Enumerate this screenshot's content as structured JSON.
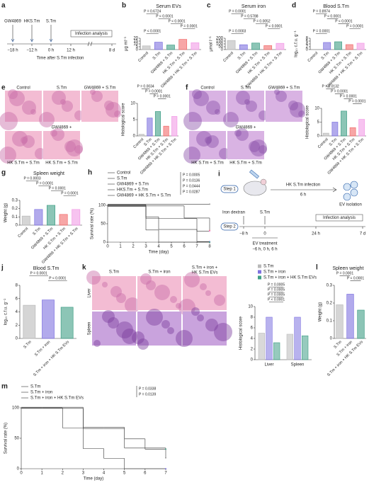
{
  "chart_data": [
    {
      "type": "bar",
      "panel": "b",
      "title": "Serum EVs",
      "ylabel": "μg ml⁻¹",
      "categories": [
        "Control",
        "S.Tm",
        "GW4869 + S.Tm",
        "HK S.Tm + S.Tm",
        "GW4869 + HK S.Tm + S.Tm"
      ],
      "values": [
        6.5,
        13,
        8,
        18,
        12
      ],
      "colors": [
        "#b9b9b9",
        "#7e72e0",
        "#3f9f86",
        "#f26b6b",
        "#f29be6"
      ],
      "ylim": [
        0,
        20
      ],
      "yticks": [
        0,
        5,
        10,
        15,
        20
      ],
      "annotations": [
        "P = 0.6724",
        "P < 0.0001",
        "P < 0.0001",
        "P = 0.0001",
        "P < 0.0001"
      ]
    },
    {
      "type": "bar",
      "panel": "c",
      "title": "Serum iron",
      "ylabel": "μmol l⁻¹",
      "categories": [
        "Control",
        "S.Tm",
        "GW4869 + S.Tm",
        "HK S.Tm + S.Tm",
        "GW4869 + HK S.Tm + S.Tm"
      ],
      "values": [
        160,
        85,
        115,
        70,
        110
      ],
      "colors": [
        "#b9b9b9",
        "#7e72e0",
        "#3f9f86",
        "#f26b6b",
        "#f29be6"
      ],
      "ylim": [
        0,
        200
      ],
      "yticks": [
        0,
        50,
        100,
        150,
        200
      ],
      "annotations": [
        "P = 0.0001",
        "P = 0.5788",
        "P = 0.0052",
        "P < 0.0001",
        "P = 0.0003"
      ]
    },
    {
      "type": "bar",
      "panel": "d",
      "title": "Blood S.Tm",
      "ylabel": "log₁₀ c.f.u. g⁻¹",
      "categories": [
        "Control",
        "S.Tm",
        "GW4869 + S.Tm",
        "HK S.Tm + S.Tm",
        "GW4869 + HK S.Tm + S.Tm"
      ],
      "values": [
        0,
        5,
        5.5,
        3.5,
        4.5
      ],
      "colors": [
        "#b9b9b9",
        "#7e72e0",
        "#3f9f86",
        "#f26b6b",
        "#f29be6"
      ],
      "ylim": [
        0,
        8
      ],
      "yticks": [
        0,
        2,
        4,
        6,
        8
      ],
      "annotations": [
        "P = 0.8974",
        "P < 0.0001",
        "P < 0.0001",
        "P = 0.0001",
        "P = 0.0001"
      ]
    },
    {
      "type": "bar",
      "ylabel": "Histological score",
      "categories": [
        "Control",
        "S.Tm",
        "GW4869 + S.Tm",
        "HK S.Tm + S.Tm",
        "GW4869 + HK S.Tm + S.Tm"
      ],
      "values": [
        0.5,
        5.5,
        7.5,
        3,
        6
      ],
      "colors": [
        "#b9b9b9",
        "#7e72e0",
        "#3f9f86",
        "#f26b6b",
        "#f29be6"
      ],
      "ylim": [
        0,
        10
      ],
      "yticks": [
        0,
        5,
        10
      ],
      "annotations": [
        "P = 0.0034",
        "P = 0.0001",
        "P = 0.0001"
      ]
    },
    {
      "type": "bar",
      "ylabel": "Histological score",
      "categories": [
        "Control",
        "S.Tm",
        "GW4869 + S.Tm",
        "HK S.Tm + S.Tm",
        "GW4869 + HK S.Tm + S.Tm"
      ],
      "values": [
        1,
        5,
        9,
        3,
        6
      ],
      "colors": [
        "#b9b9b9",
        "#7e72e0",
        "#3f9f86",
        "#f26b6b",
        "#f29be6"
      ],
      "ylim": [
        0,
        10
      ],
      "yticks": [
        0,
        5,
        10
      ],
      "annotations": [
        "P = 0.0132",
        "P = 0.0001",
        "P = 0.0001",
        "P = 0.0001"
      ]
    },
    {
      "type": "bar",
      "panel": "g",
      "title": "Spleen weight",
      "ylabel": "Weight (g)",
      "categories": [
        "Control",
        "S.Tm",
        "GW4869 + S.Tm",
        "HK S.Tm + S.Tm",
        "GW4869 + HK S.Tm + S.Tm"
      ],
      "values": [
        0.11,
        0.19,
        0.24,
        0.13,
        0.19
      ],
      "colors": [
        "#b9b9b9",
        "#7e72e0",
        "#3f9f86",
        "#f26b6b",
        "#f29be6"
      ],
      "ylim": [
        0,
        0.3
      ],
      "yticks": [
        0,
        0.1,
        0.2,
        0.3
      ],
      "annotations": [
        "P = 0.0003",
        "P = 0.0001",
        "P = 0.0001",
        "P = 0.0001"
      ]
    },
    {
      "type": "line",
      "step": true,
      "panel": "h",
      "xlabel": "Time (day)",
      "ylabel": "Survival rate (%)",
      "x": [
        0,
        1,
        2,
        3,
        4,
        5,
        6,
        7,
        8
      ],
      "xlim": [
        0,
        8
      ],
      "xticks": [
        0,
        1,
        2,
        3,
        4,
        5,
        6,
        7,
        8
      ],
      "ylim": [
        0,
        100
      ],
      "yticks": [
        0,
        50,
        100
      ],
      "series": [
        {
          "name": "Control",
          "color": "#9a9a9a",
          "values": [
            100,
            100,
            100,
            100,
            100,
            100,
            100,
            100,
            100
          ]
        },
        {
          "name": "S.Tm",
          "color": "#7e72e0",
          "values": [
            100,
            100,
            100,
            67,
            33,
            33,
            33,
            0,
            0
          ]
        },
        {
          "name": "GW4869 + S.Tm",
          "color": "#3f9f86",
          "values": [
            100,
            100,
            100,
            33,
            0,
            0,
            0,
            0,
            0
          ]
        },
        {
          "name": "HKS.Tm + S.Tm",
          "color": "#f26b6b",
          "values": [
            100,
            100,
            100,
            100,
            100,
            100,
            67,
            67,
            33
          ]
        },
        {
          "name": "GW4869 + HK S.Tm + S.Tm",
          "color": "#f29be6",
          "values": [
            100,
            100,
            100,
            67,
            67,
            67,
            67,
            33,
            33
          ]
        }
      ],
      "annotations": [
        "P = 0.0005",
        "P = 0.0136",
        "P = 0.0444",
        "P = 0.0287"
      ]
    },
    {
      "type": "bar",
      "panel": "j",
      "title": "Blood S.Tm",
      "ylabel": "log₁₀ c.f.u. g⁻¹",
      "categories": [
        "S.Tm",
        "S.Tm + iron",
        "S.Tm + iron + HK S.Tm EVs"
      ],
      "values": [
        5,
        5.8,
        4.7
      ],
      "colors": [
        "#b9b9b9",
        "#7e72e0",
        "#3f9f86"
      ],
      "ylim": [
        0,
        8
      ],
      "yticks": [
        0,
        2,
        4,
        6,
        8
      ],
      "annotations": [
        "P = 0.0001",
        "P < 0.0001"
      ]
    },
    {
      "type": "bar",
      "ylabel": "Histological score",
      "categories": [
        "Liver",
        "Spleen"
      ],
      "series": [
        {
          "name": "S.Tm",
          "color": "#b9b9b9",
          "values": [
            5,
            4.8
          ]
        },
        {
          "name": "S.Tm + iron",
          "color": "#7e72e0",
          "values": [
            8,
            8
          ]
        },
        {
          "name": "S.Tm + iron + HK S.Tm EVs",
          "color": "#3f9f86",
          "values": [
            3.2,
            4.5
          ]
        }
      ],
      "ylim": [
        0,
        10
      ],
      "yticks": [
        0,
        2,
        4,
        6,
        8,
        10
      ],
      "annotations": [
        "P = 0.0005",
        "P = 0.0005",
        "P = 0.0005",
        "P < 0.0001"
      ]
    },
    {
      "type": "bar",
      "panel": "l",
      "title": "Spleen weight",
      "ylabel": "Weight (g)",
      "categories": [
        "S.Tm",
        "S.Tm + iron",
        "S.Tm + iron + HK S.Tm EVs"
      ],
      "values": [
        0.19,
        0.25,
        0.16
      ],
      "colors": [
        "#b9b9b9",
        "#7e72e0",
        "#3f9f86"
      ],
      "ylim": [
        0,
        0.3
      ],
      "yticks": [
        0,
        0.1,
        0.2,
        0.3
      ],
      "annotations": [
        "P = 0.0001",
        "P < 0.0001"
      ]
    },
    {
      "type": "line",
      "step": true,
      "panel": "m",
      "xlabel": "Time (day)",
      "ylabel": "Survival rate (%)",
      "x": [
        0,
        1,
        2,
        3,
        4,
        5,
        6,
        7
      ],
      "xlim": [
        0,
        7
      ],
      "xticks": [
        0,
        1,
        2,
        3,
        4,
        5,
        6,
        7
      ],
      "ylim": [
        0,
        100
      ],
      "yticks": [
        0,
        50,
        100
      ],
      "series": [
        {
          "name": "S.Tm",
          "color": "#9a9a9a",
          "values": [
            100,
            100,
            100,
            67,
            67,
            33,
            33,
            17
          ]
        },
        {
          "name": "S.Tm + iron",
          "color": "#7e72e0",
          "values": [
            100,
            100,
            67,
            33,
            17,
            0,
            0,
            0
          ]
        },
        {
          "name": "S.Tm + iron + HK S.Tm EVs",
          "color": "#3f9f86",
          "values": [
            100,
            100,
            100,
            67,
            67,
            50,
            33,
            33
          ]
        }
      ],
      "annotations": [
        "P = 0.0338",
        "P = 0.0139"
      ]
    }
  ],
  "timeline": {
    "panel": "a",
    "treatments": [
      "GW4869",
      "HKS.Tm",
      "S.Tm"
    ],
    "ticks": [
      "−18 h",
      "−12 h",
      "0 h",
      "12 h",
      "8 d"
    ],
    "analysis": "Infection analysis",
    "xlabel": "Time after S.Tm infection"
  },
  "histology_e": {
    "panel": "e",
    "labels": [
      "Control",
      "S.Tm",
      "GW4869 + S.Tm",
      "GW4869 +",
      "HK S.Tm + S.Tm",
      "HK S.Tm + S.Tm"
    ]
  },
  "histology_f": {
    "panel": "f",
    "labels": [
      "Control",
      "S.Tm",
      "GW4869 + S.Tm",
      "GW4869 +",
      "HK S.Tm + S.Tm",
      "HK S.Tm + S.Tm"
    ]
  },
  "histology_k": {
    "panel": "k",
    "columns": [
      "S.Tm",
      "S.Tm + iron",
      "S.Tm + iron +",
      "HK S.Tm EVs"
    ],
    "rows": [
      "Liver",
      "Spleen"
    ]
  },
  "schematic": {
    "panel": "i",
    "step1": "Step 1",
    "infection": "HK S.Tm infection",
    "duration": "6 h",
    "isolation": "EV isolation",
    "iron": "Iron dextran",
    "stm": "S.Tm",
    "step2": "Step 2",
    "analysis": "Infection analysis",
    "ticks": [
      "−8 h",
      "0",
      "24 h",
      "7 d"
    ],
    "treatment": "EV treatment",
    "treatment_times": "−6 h, 0 h, 6 h"
  }
}
